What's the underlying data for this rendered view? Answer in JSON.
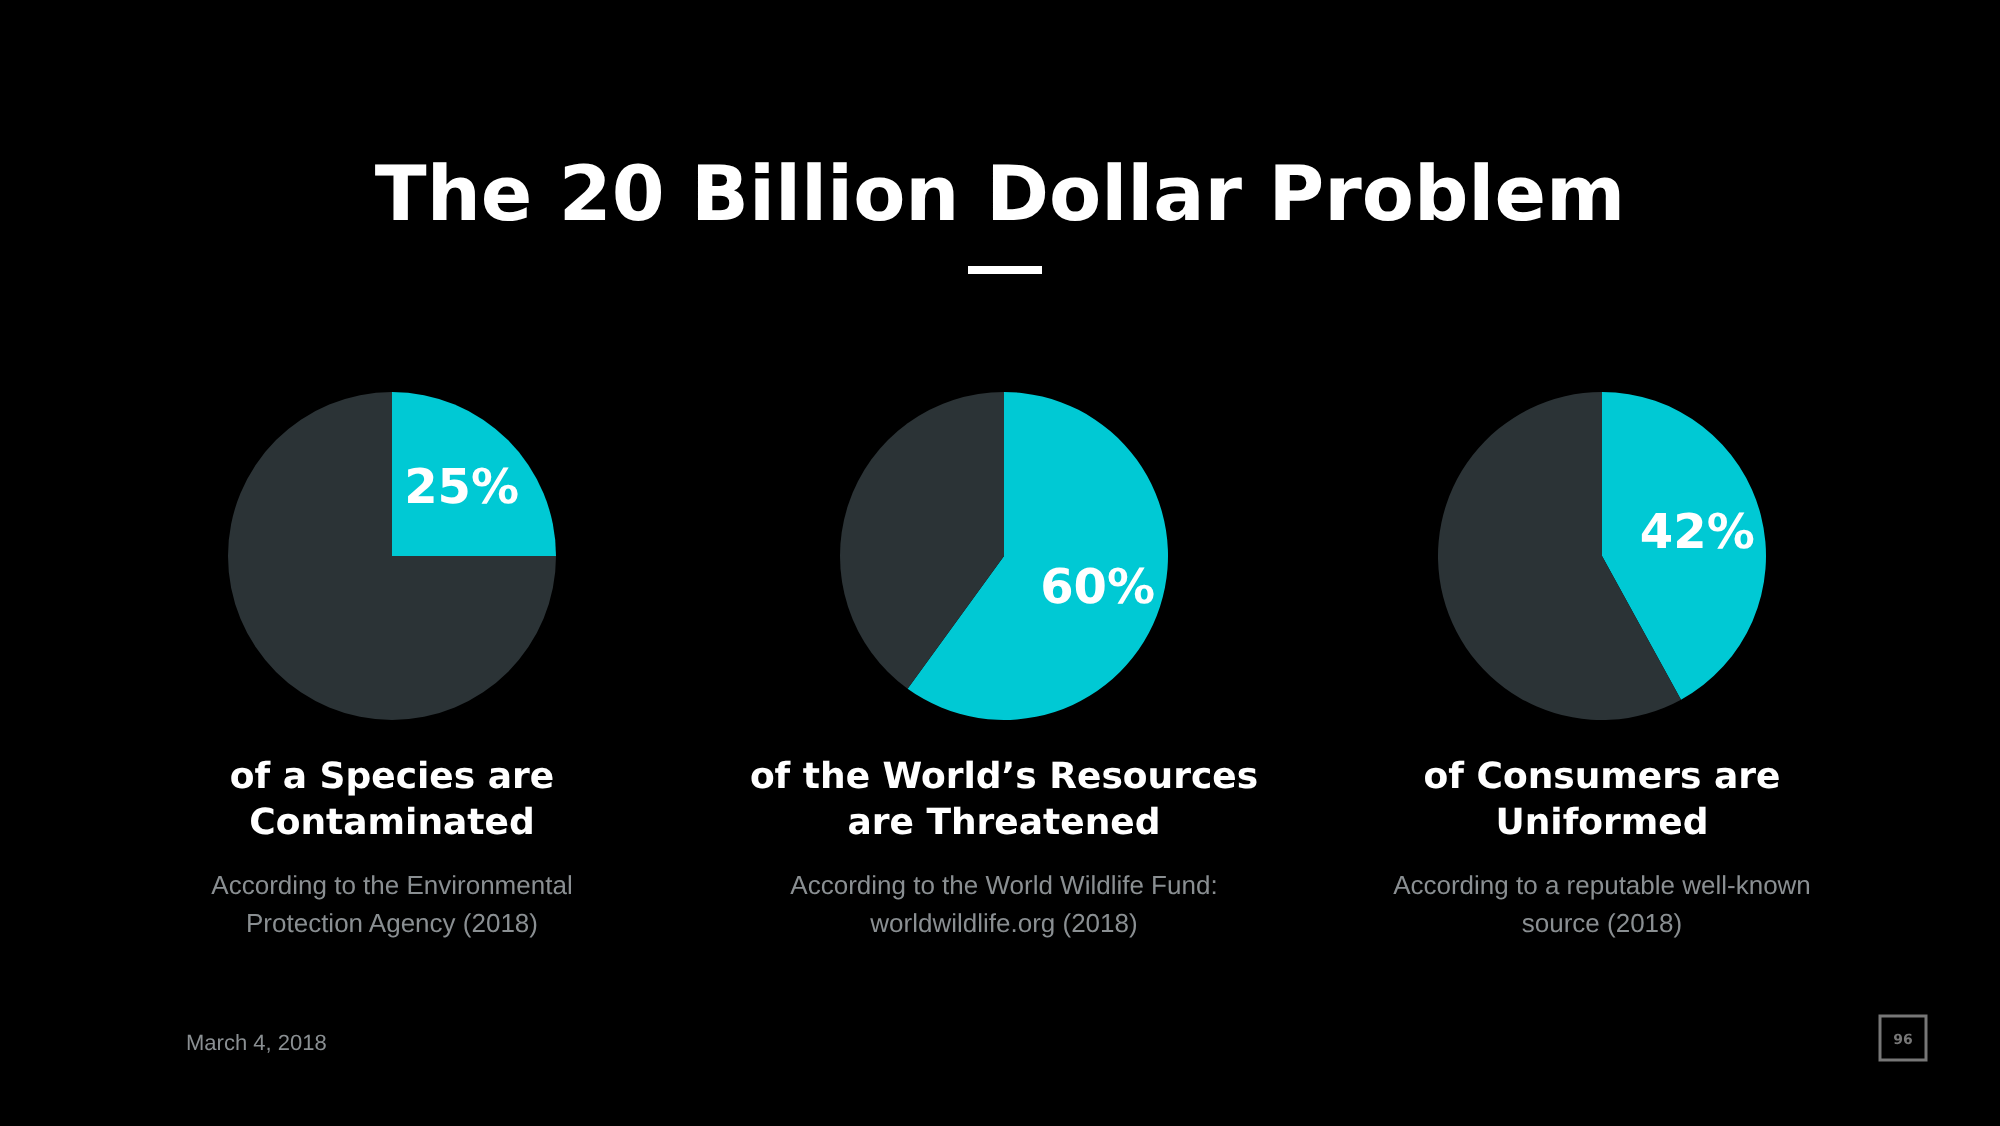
{
  "chart_data": [
    {
      "type": "other",
      "title": "The 20 Billion Dollar Problem",
      "annotations": [
        "March 4, 2018",
        "96"
      ]
    },
    {
      "type": "pie",
      "title": "of a Species are Contaminated",
      "categories": [
        null,
        null
      ],
      "values": [
        25,
        75
      ],
      "colors": [
        "#00c9d4",
        "#2b3336"
      ],
      "value_labels": [
        "25%",
        null
      ],
      "annotations": [
        "According to the Environmental Protection Agency (2018)"
      ]
    },
    {
      "type": "pie",
      "title": "of the World’s Resources are Threatened",
      "categories": [
        null,
        null
      ],
      "values": [
        60,
        40
      ],
      "colors": [
        "#00c9d4",
        "#2b3336"
      ],
      "value_labels": [
        "60%",
        null
      ],
      "annotations": [
        "According to the World Wildlife Fund: worldwildlife.org (2018)"
      ]
    },
    {
      "type": "pie",
      "title": "of Consumers are Uniformed",
      "categories": [
        null,
        null
      ],
      "values": [
        42,
        58
      ],
      "colors": [
        "#00c9d4",
        "#2b3336"
      ],
      "value_labels": [
        "42%",
        null
      ],
      "annotations": [
        "According to a reputable well-known source (2018)"
      ]
    }
  ]
}
